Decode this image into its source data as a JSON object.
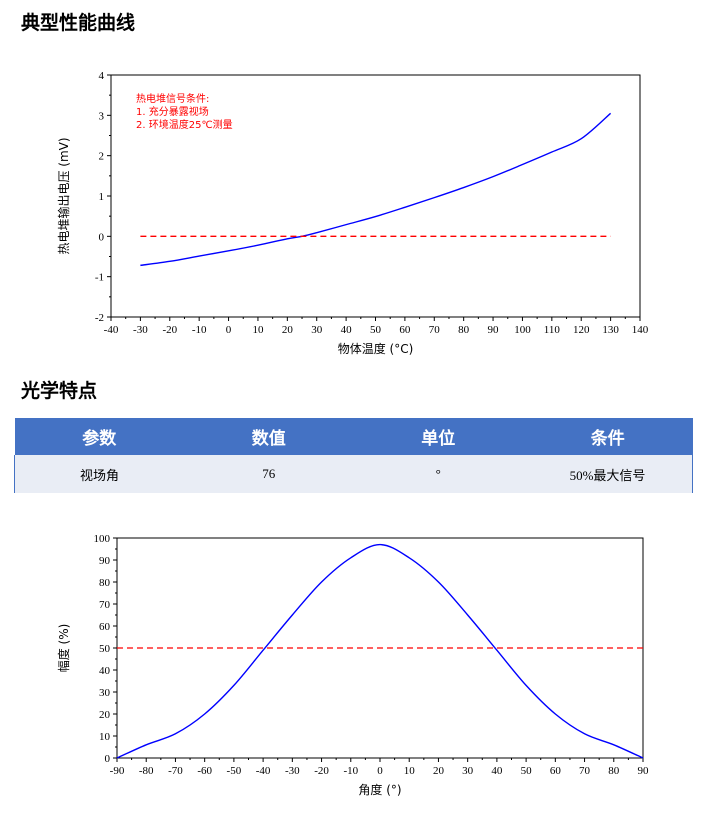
{
  "headings": {
    "curve": "典型性能曲线",
    "optics": "光学特点"
  },
  "colors": {
    "series_line": "#0000ff",
    "reference_line": "#ff0000",
    "note_text": "#ff0000",
    "table_header_bg": "#4472c4",
    "table_row_bg": "#e9edf5"
  },
  "table": {
    "headers": [
      "参数",
      "数值",
      "单位",
      "条件"
    ],
    "rows": [
      [
        "视场角",
        "76",
        "°",
        "50%最大信号"
      ]
    ]
  },
  "chart_data": [
    {
      "type": "line",
      "title": "",
      "xlabel": "物体温度 (°C)",
      "ylabel": "热电堆输出电压 (mV)",
      "xlim": [
        -40,
        140
      ],
      "ylim": [
        -2,
        4
      ],
      "xticks": [
        -40,
        -30,
        -20,
        -10,
        0,
        10,
        20,
        30,
        40,
        50,
        60,
        70,
        80,
        90,
        100,
        110,
        120,
        130,
        140
      ],
      "yticks": [
        -2,
        -1,
        0,
        1,
        2,
        3,
        4
      ],
      "grid": false,
      "annotations": [
        "热电堆信号条件:",
        "1. 充分暴露视场",
        "2. 环境温度25℃测量"
      ],
      "series": [
        {
          "style": "solid",
          "color": "#0000ff",
          "x": [
            -30,
            -20,
            -10,
            0,
            10,
            20,
            25,
            30,
            40,
            50,
            60,
            70,
            80,
            90,
            100,
            110,
            120,
            130
          ],
          "y": [
            -0.72,
            -0.62,
            -0.49,
            -0.36,
            -0.22,
            -0.06,
            0.0,
            0.09,
            0.29,
            0.49,
            0.72,
            0.96,
            1.21,
            1.48,
            1.78,
            2.09,
            2.42,
            3.05
          ]
        },
        {
          "style": "dashed",
          "color": "#ff0000",
          "x": [
            -30,
            130
          ],
          "y": [
            0,
            0
          ]
        }
      ]
    },
    {
      "type": "line",
      "title": "",
      "xlabel": "角度 (°)",
      "ylabel": "幅度 (%)",
      "xlim": [
        -90,
        90
      ],
      "ylim": [
        0,
        100
      ],
      "xticks": [
        -90,
        -80,
        -70,
        -60,
        -50,
        -40,
        -30,
        -20,
        -10,
        0,
        10,
        20,
        30,
        40,
        50,
        60,
        70,
        80,
        90
      ],
      "yticks": [
        0,
        10,
        20,
        30,
        40,
        50,
        60,
        70,
        80,
        90,
        100
      ],
      "grid": false,
      "series": [
        {
          "style": "solid",
          "color": "#0000ff",
          "x": [
            -90,
            -80,
            -70,
            -60,
            -50,
            -40,
            -30,
            -20,
            -10,
            0,
            10,
            20,
            30,
            40,
            50,
            60,
            70,
            80,
            90
          ],
          "y": [
            0,
            6,
            11,
            20,
            33,
            49,
            65,
            80,
            91,
            97,
            91,
            80,
            65,
            49,
            33,
            20,
            11,
            6,
            0
          ]
        },
        {
          "style": "dashed",
          "color": "#ff0000",
          "x": [
            -90,
            90
          ],
          "y": [
            50,
            50
          ]
        }
      ]
    }
  ]
}
